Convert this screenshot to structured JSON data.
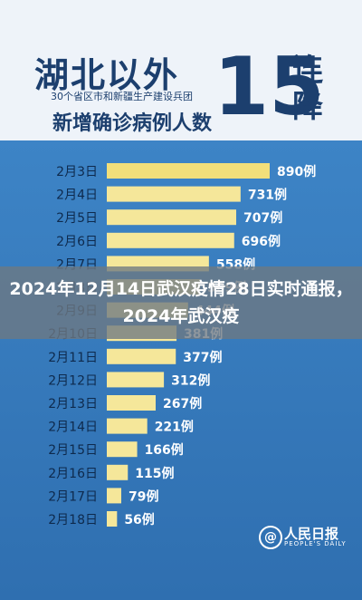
{
  "header": {
    "title_main": "湖北以外",
    "subtitle_small": "30个省区市和新疆生产建设兵团",
    "subtitle_mid": "新增确诊病例人数",
    "streak_number": "15",
    "streak_side": [
      "连",
      "降"
    ]
  },
  "overlay": {
    "caption": "2024年12月14日武汉疫情28日实时通报，2024年武汉疫"
  },
  "watermark": {
    "logo_glyph": "@",
    "name": "人民日报",
    "sub": "PEOPLE'S DAILY"
  },
  "colors": {
    "bar": "#f5e79a",
    "bar_highlight": "#f2df7a",
    "background_top": "#eef3f9",
    "background_chart": "#3d84c6",
    "label_dark": "#0e2a4d"
  },
  "chart_data": {
    "type": "bar",
    "orientation": "horizontal",
    "categories": [
      "2月3日",
      "2月4日",
      "2月5日",
      "2月6日",
      "2月7日",
      "2月8日",
      "2月9日",
      "2月10日",
      "2月11日",
      "2月12日",
      "2月13日",
      "2月14日",
      "2月15日",
      "2月16日",
      "2月17日",
      "2月18日"
    ],
    "values": [
      890,
      731,
      707,
      696,
      558,
      509,
      444,
      381,
      377,
      312,
      267,
      221,
      166,
      115,
      79,
      56
    ],
    "value_labels": [
      "890例",
      "731例",
      "707例",
      "696例",
      "558例",
      "509例",
      "444例",
      "381例",
      "377例",
      "312例",
      "267例",
      "221例",
      "166例",
      "115例",
      "79例",
      "56例"
    ],
    "xlim": [
      0,
      890
    ]
  }
}
